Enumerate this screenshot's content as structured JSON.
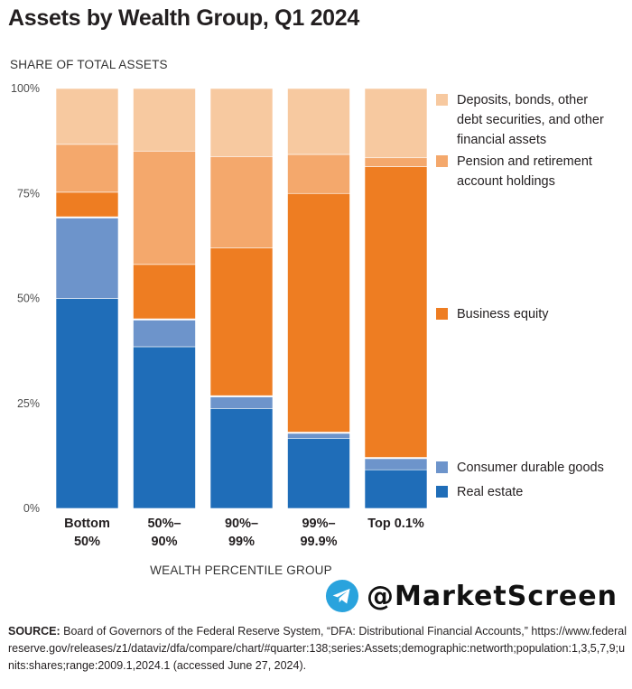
{
  "title": "Assets by Wealth Group, Q1 2024",
  "watermark": "@MarketScreen",
  "source": {
    "label": "SOURCE:",
    "text": "Board of Governors of the Federal Reserve System, “DFA: Distributional Financial Accounts,” https://www.federalreserve.gov/releases/z1/dataviz/dfa/compare/chart/#quarter:138;series:Assets;demographic:networth;population:1,3,5,7,9;units:shares;range:2009.1,2024.1 (accessed June 27, 2024)."
  },
  "chart_data": {
    "type": "bar",
    "stacked": true,
    "title": "Assets by Wealth Group, Q1 2024",
    "ylabel": "SHARE OF TOTAL ASSETS",
    "xlabel": "WEALTH PERCENTILE GROUP",
    "ylim": [
      0,
      100
    ],
    "yticks": [
      "0%",
      "25%",
      "50%",
      "75%",
      "100%"
    ],
    "categories": [
      [
        "Bottom",
        "50%"
      ],
      [
        "50%–",
        "90%"
      ],
      [
        "90%–",
        "99%"
      ],
      [
        "99%–",
        "99.9%"
      ],
      [
        "Top 0.1%"
      ]
    ],
    "series": [
      {
        "name": "Real estate",
        "color": "#1f6db8",
        "values": [
          50,
          38.5,
          23.8,
          16.7,
          9.2
        ]
      },
      {
        "name": "Consumer durable goods",
        "color": "#6d94cb",
        "values": [
          19.3,
          6.5,
          2.9,
          1.3,
          2.8
        ]
      },
      {
        "name": "Business equity",
        "color": "#ee7d22",
        "values": [
          6,
          13.1,
          35.3,
          57,
          69.4
        ]
      },
      {
        "name": "Pension and retirement account holdings",
        "color": "#f4a86c",
        "values": [
          11.4,
          27,
          21.8,
          9.3,
          2.1
        ]
      },
      {
        "name": "Deposits, bonds, other debt securities, and other financial assets",
        "color": "#f7c9a0",
        "values": [
          13.3,
          14.9,
          16.2,
          15.7,
          16.5
        ]
      }
    ],
    "legend": [
      {
        "series": 4,
        "lines": [
          "Deposits, bonds, other",
          "debt securities, and other",
          "financial assets"
        ]
      },
      {
        "series": 3,
        "lines": [
          "Pension and retirement",
          "account holdings"
        ]
      },
      {
        "series": 2,
        "lines": [
          "Business equity"
        ]
      },
      {
        "series": 1,
        "lines": [
          "Consumer durable goods"
        ]
      },
      {
        "series": 0,
        "lines": [
          "Real estate"
        ]
      }
    ]
  }
}
